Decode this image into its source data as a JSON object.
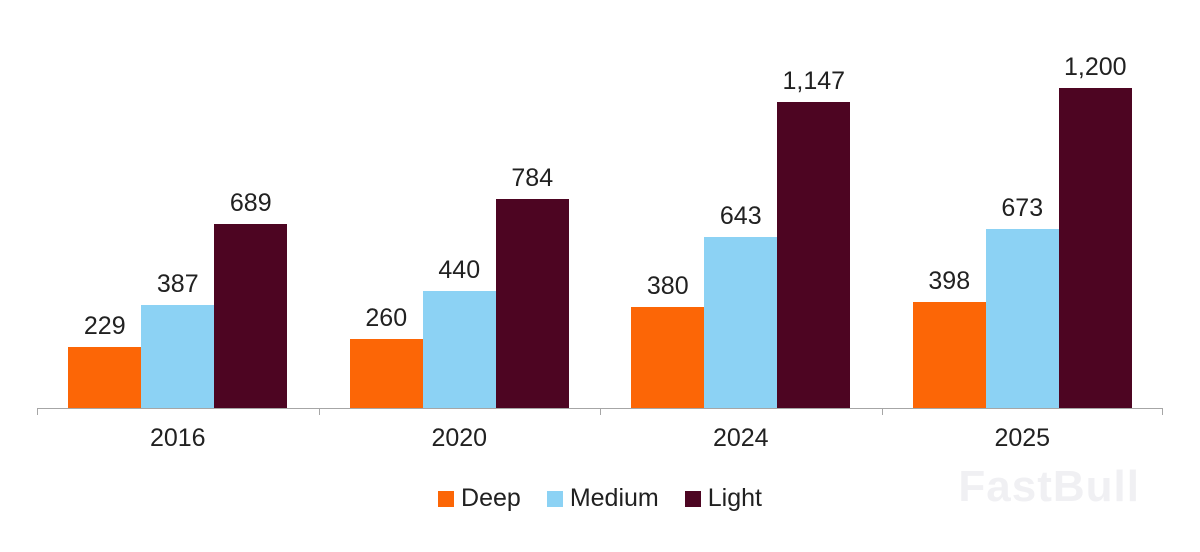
{
  "chart_data": {
    "type": "bar",
    "categories": [
      "2016",
      "2020",
      "2024",
      "2025"
    ],
    "series": [
      {
        "name": "Deep",
        "color": "#fc6606",
        "values": [
          229,
          260,
          380,
          398
        ]
      },
      {
        "name": "Medium",
        "color": "#8cd2f4",
        "values": [
          387,
          440,
          643,
          673
        ]
      },
      {
        "name": "Light",
        "color": "#4d0522",
        "values": [
          689,
          784,
          1147,
          1200
        ]
      }
    ],
    "title": "",
    "xlabel": "",
    "ylabel": "",
    "ylim": [
      0,
      1200
    ],
    "grid": false,
    "legend_position": "bottom",
    "data_labels": true,
    "axis_color": "#a6a6a6"
  },
  "watermark": {
    "text": "FastBull"
  }
}
